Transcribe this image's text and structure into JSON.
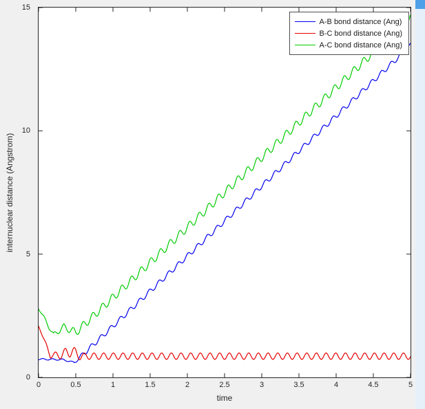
{
  "window": {
    "figure_bg": "#f0f0f0",
    "scrollbar": {
      "track_color": "#e6f0fa",
      "button_color": "#4ea0e8"
    }
  },
  "chart_data": {
    "type": "line",
    "title": "",
    "xlabel": "time",
    "ylabel": "internuclear distance (Angstrom)",
    "xlim": [
      0,
      5
    ],
    "ylim": [
      0,
      15
    ],
    "xticks": [
      0,
      0.5,
      1,
      1.5,
      2,
      2.5,
      3,
      3.5,
      4,
      4.5,
      5
    ],
    "xtick_labels": [
      "0",
      "0.5",
      "1",
      "1.5",
      "2",
      "2.5",
      "3",
      "3.5",
      "4",
      "4.5",
      "5"
    ],
    "yticks": [
      0,
      5,
      10,
      15
    ],
    "ytick_labels": [
      "0",
      "5",
      "10",
      "15"
    ],
    "grid": false,
    "plot_bg": "#ffffff",
    "axis_color": "#262626",
    "tick_length": 6,
    "sample_dt": 0.005,
    "legend": {
      "position": "top-right",
      "entries": [
        "A-B bond distance (Ang)",
        "B-C bond distance (Ang)",
        "A-C bond distance (Ang)"
      ]
    },
    "series": [
      {
        "name": "A-B bond distance (Ang)",
        "color": "#0000ee",
        "description": "flat near 0.74 until collision at t=0.48, then rises linearly to 13.45 at t=5 with small vibration wiggles",
        "baseline": [
          [
            0,
            0.74
          ],
          [
            0.33,
            0.72
          ],
          [
            0.48,
            0.6
          ],
          [
            5,
            13.45
          ]
        ],
        "osc_amp": [
          [
            0,
            0.03
          ],
          [
            0.45,
            0.03
          ],
          [
            0.6,
            0.1
          ],
          [
            5,
            0.1
          ]
        ],
        "osc_period": 0.13,
        "osc_phase": 3.14159,
        "osc_t0": 0.48
      },
      {
        "name": "B-C bond distance (Ang)",
        "color": "#e60000",
        "description": "falls from 2.08 to ~0.8 by t=0.16, transient bump to ~1.3 near t=0.44, then steady vibration between ~0.73 and ~0.99",
        "baseline": [
          [
            0,
            2.08
          ],
          [
            0.16,
            0.88
          ],
          [
            0.31,
            0.92
          ],
          [
            0.44,
            1.08
          ],
          [
            0.56,
            0.86
          ],
          [
            5,
            0.86
          ]
        ],
        "osc_amp": [
          [
            0,
            0.0
          ],
          [
            0.16,
            0.1
          ],
          [
            0.44,
            0.24
          ],
          [
            0.6,
            0.13
          ],
          [
            5,
            0.13
          ]
        ],
        "osc_period": 0.13,
        "osc_phase": -1.5708,
        "osc_t0": 0.16
      },
      {
        "name": "A-C bond distance (Ang)",
        "color": "#00cc00",
        "description": "falls from 2.82 to ~1.7 at t=0.2, small bump, then rises linearly to 14.6 at t=5 with vibration wiggles",
        "baseline": [
          [
            0,
            2.82
          ],
          [
            0.2,
            1.72
          ],
          [
            0.34,
            2.05
          ],
          [
            0.5,
            1.82
          ],
          [
            5,
            14.6
          ]
        ],
        "osc_amp": [
          [
            0,
            0.05
          ],
          [
            0.5,
            0.16
          ],
          [
            5,
            0.16
          ]
        ],
        "osc_period": 0.13,
        "osc_phase": 3.14159,
        "osc_t0": 0.5
      }
    ]
  }
}
